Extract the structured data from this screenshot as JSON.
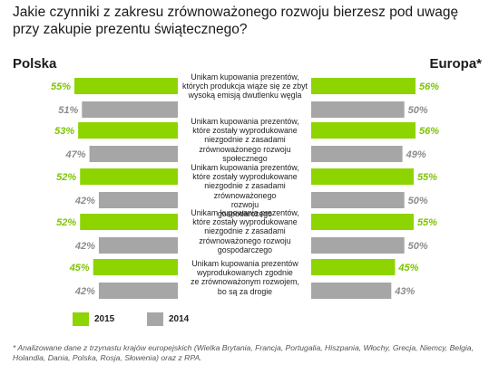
{
  "title": "Jakie czynniki z zakresu zrównoważonego rozwoju bierzesz pod uwagę przy zakupie prezentu świątecznego?",
  "regions": {
    "left": "Polska",
    "right": "Europa*"
  },
  "colors": {
    "y2015": "#8dd400",
    "y2014": "#a6a6a6",
    "label2015": "#7dc400",
    "label2014": "#8c8c8c"
  },
  "chart_data": {
    "type": "bar",
    "title": "Jakie czynniki z zakresu zrównoważonego rozwoju bierzesz pod uwagę przy zakupie prezentu świątecznego?",
    "categories": [
      "Unikam kupowania prezentów, których produkcja wiąże się ze zbyt wysoką emisją dwutlenku węgla",
      "Unikam kupowania prezentów, które zostały wyprodukowane niezgodnie z zasadami zrównoważonego rozwoju społecznego",
      "Unikam kupowania prezentów, które zostały wyprodukowane niezgodnie z zasadami zrównoważonego rozwoju gospodarczego",
      "Unikam kupowania prezentów, które zostały wyprodukowane niezgodnie z zasadami zrównoważonego rozwoju gospodarczego",
      "Unikam kupowania prezentów wyprodukowanych zgodnie ze zrównoważonym rozwojem, bo są za drogie"
    ],
    "category_lines": [
      [
        "Unikam kupowania prezentów,",
        "których produkcja wiąże się ze zbyt",
        "wysoką emisją dwutlenku węgla"
      ],
      [
        "Unikam kupowania prezentów,",
        "które zostały wyprodukowane",
        "niezgodnie z zasadami",
        "zrównoważonego rozwoju",
        "społecznego"
      ],
      [
        "Unikam kupowania prezentów,",
        "które zostały wyprodukowane",
        "niezgodnie z zasadami",
        "zrównoważonego",
        "rozwoju",
        "gospodarczego"
      ],
      [
        "Unikam kupowania prezentów,",
        "które zostały wyprodukowane",
        "niezgodnie z zasadami",
        "zrównoważonego rozwoju",
        "gospodarczego"
      ],
      [
        "Unikam kupowania prezentów",
        "wyprodukowanych zgodnie",
        "ze zrównoważonym rozwojem,",
        "bo są za drogie"
      ]
    ],
    "groups": [
      "Polska",
      "Europa*"
    ],
    "series": [
      {
        "name": "2015",
        "polska": [
          55,
          53,
          52,
          52,
          45
        ],
        "europa": [
          56,
          56,
          55,
          55,
          45
        ]
      },
      {
        "name": "2014",
        "polska": [
          51,
          47,
          42,
          42,
          42
        ],
        "europa": [
          50,
          49,
          50,
          50,
          43
        ]
      }
    ],
    "value_labels": {
      "polska_2015": [
        "55%",
        "53%",
        "52%",
        "52%",
        "45%"
      ],
      "polska_2014": [
        "51%",
        "47%",
        "42%",
        "42%",
        "42%"
      ],
      "europa_2015": [
        "56%",
        "56%",
        "55%",
        "55%",
        "45%"
      ],
      "europa_2014": [
        "50%",
        "49%",
        "50%",
        "50%",
        "43%"
      ]
    },
    "legend": [
      "2015",
      "2014"
    ],
    "legend_position": "bottom-left",
    "grid": false
  },
  "footnote": "* Analizowane dane z trzynastu krajów europejskich (Wielka Brytania, Francja, Portugalia, Hiszpania, Włochy, Grecja, Niemcy, Belgia, Holandia, Dania, Polska, Rosja, Słowenia) oraz z RPA."
}
